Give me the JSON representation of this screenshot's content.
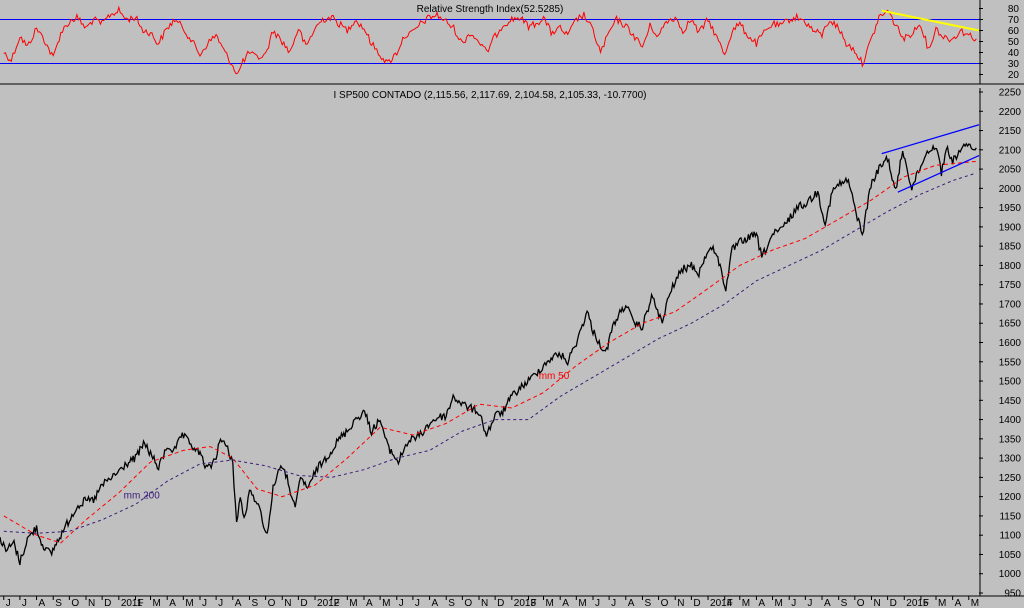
{
  "chart_data": [
    {
      "type": "line",
      "title": "Relative Strength Index(52.5285)",
      "ylim": [
        15,
        85
      ],
      "y_ticks": [
        20,
        30,
        40,
        50,
        60,
        70,
        80
      ],
      "reference_lines": [
        30,
        70
      ],
      "series": [
        {
          "color": "#ff0000",
          "x": [
            "2010-06-01",
            "2010-06-15",
            "2010-07-01",
            "2010-07-15",
            "2010-08-01",
            "2010-08-15",
            "2010-09-01",
            "2010-09-15",
            "2010-10-01",
            "2010-10-15",
            "2010-11-01",
            "2010-11-15",
            "2010-12-01",
            "2010-12-15",
            "2011-01-01",
            "2011-01-15",
            "2011-02-01",
            "2011-02-15",
            "2011-03-01",
            "2011-03-15",
            "2011-04-01",
            "2011-04-15",
            "2011-05-01",
            "2011-05-15",
            "2011-06-01",
            "2011-06-15",
            "2011-07-01",
            "2011-07-15",
            "2011-08-01",
            "2011-08-10",
            "2011-08-20",
            "2011-09-01",
            "2011-09-15",
            "2011-10-01",
            "2011-10-15",
            "2011-11-01",
            "2011-11-15",
            "2011-12-01",
            "2011-12-15",
            "2012-01-01",
            "2012-01-15",
            "2012-02-01",
            "2012-02-15",
            "2012-03-01",
            "2012-03-15",
            "2012-04-01",
            "2012-04-15",
            "2012-05-01",
            "2012-05-15",
            "2012-06-01",
            "2012-06-15",
            "2012-07-01",
            "2012-07-15",
            "2012-08-01",
            "2012-08-15",
            "2012-09-01",
            "2012-09-15",
            "2012-10-01",
            "2012-10-15",
            "2012-11-01",
            "2012-11-15",
            "2012-12-01",
            "2012-12-15",
            "2013-01-01",
            "2013-01-15",
            "2013-02-01",
            "2013-02-15",
            "2013-03-01",
            "2013-03-15",
            "2013-04-01",
            "2013-04-15",
            "2013-05-01",
            "2013-05-15",
            "2013-06-01",
            "2013-06-15",
            "2013-07-01",
            "2013-07-15",
            "2013-08-01",
            "2013-08-15",
            "2013-09-01",
            "2013-09-15",
            "2013-10-01",
            "2013-10-15",
            "2013-11-01",
            "2013-11-15",
            "2013-12-01",
            "2013-12-15",
            "2014-01-01",
            "2014-01-15",
            "2014-02-01",
            "2014-02-15",
            "2014-03-01",
            "2014-03-15",
            "2014-04-01",
            "2014-04-15",
            "2014-05-01",
            "2014-05-15",
            "2014-06-01",
            "2014-06-15",
            "2014-07-01",
            "2014-07-15",
            "2014-08-01",
            "2014-08-15",
            "2014-09-01",
            "2014-09-15",
            "2014-10-01",
            "2014-10-15",
            "2014-11-01",
            "2014-11-15",
            "2014-12-01",
            "2014-12-15",
            "2015-01-01",
            "2015-01-15",
            "2015-02-01",
            "2015-02-15",
            "2015-03-01",
            "2015-03-15",
            "2015-04-01",
            "2015-04-15",
            "2015-05-01",
            "2015-05-15"
          ],
          "y": [
            40,
            33,
            55,
            45,
            62,
            52,
            35,
            58,
            68,
            72,
            62,
            70,
            66,
            74,
            78,
            70,
            72,
            60,
            58,
            48,
            62,
            70,
            62,
            52,
            38,
            48,
            56,
            42,
            28,
            20,
            32,
            40,
            35,
            38,
            60,
            50,
            40,
            62,
            45,
            62,
            70,
            72,
            66,
            60,
            70,
            62,
            48,
            38,
            30,
            40,
            55,
            58,
            66,
            72,
            74,
            68,
            62,
            48,
            58,
            50,
            40,
            55,
            65,
            70,
            72,
            64,
            66,
            72,
            58,
            62,
            55,
            70,
            74,
            60,
            40,
            58,
            70,
            64,
            56,
            45,
            64,
            55,
            68,
            72,
            60,
            70,
            58,
            70,
            56,
            38,
            60,
            66,
            56,
            48,
            58,
            66,
            64,
            70,
            72,
            68,
            60,
            56,
            70,
            62,
            48,
            42,
            30,
            52,
            72,
            78,
            66,
            52,
            58,
            66,
            42,
            62,
            54,
            52,
            60,
            56,
            52.5
          ]
        }
      ],
      "trendline": {
        "color": "#ffff00",
        "x": [
          "2014-11-20",
          "2015-05-20"
        ],
        "y": [
          78,
          60
        ]
      }
    },
    {
      "type": "line",
      "title": "I SP500 CONTADO (2,115.56, 2,117.69, 2,104.58, 2,105.33, -10.7700)",
      "ylim": [
        950,
        2250
      ],
      "y_ticks": [
        950,
        1000,
        1050,
        1100,
        1150,
        1200,
        1250,
        1300,
        1350,
        1400,
        1450,
        1500,
        1550,
        1600,
        1650,
        1700,
        1750,
        1800,
        1850,
        1900,
        1950,
        2000,
        2050,
        2100,
        2150,
        2200,
        2250
      ],
      "x_ticks": [
        "J",
        "J",
        "A",
        "S",
        "O",
        "N",
        "D",
        "2011",
        "F",
        "M",
        "A",
        "M",
        "J",
        "J",
        "A",
        "S",
        "O",
        "N",
        "D",
        "2012",
        "F",
        "M",
        "A",
        "M",
        "J",
        "J",
        "A",
        "S",
        "O",
        "N",
        "D",
        "2013",
        "F",
        "M",
        "A",
        "M",
        "J",
        "J",
        "A",
        "S",
        "O",
        "N",
        "D",
        "2014",
        "F",
        "M",
        "A",
        "M",
        "J",
        "J",
        "A",
        "S",
        "O",
        "N",
        "D",
        "2015",
        "F",
        "M",
        "A",
        "M"
      ],
      "x_tick_dates": [
        "2010-06-01",
        "2010-07-01",
        "2010-08-01",
        "2010-09-01",
        "2010-10-01",
        "2010-11-01",
        "2010-12-01",
        "2011-01-01",
        "2011-02-01",
        "2011-03-01",
        "2011-04-01",
        "2011-05-01",
        "2011-06-01",
        "2011-07-01",
        "2011-08-01",
        "2011-09-01",
        "2011-10-01",
        "2011-11-01",
        "2011-12-01",
        "2012-01-01",
        "2012-02-01",
        "2012-03-01",
        "2012-04-01",
        "2012-05-01",
        "2012-06-01",
        "2012-07-01",
        "2012-08-01",
        "2012-09-01",
        "2012-10-01",
        "2012-11-01",
        "2012-12-01",
        "2013-01-01",
        "2013-02-01",
        "2013-03-01",
        "2013-04-01",
        "2013-05-01",
        "2013-06-01",
        "2013-07-01",
        "2013-08-01",
        "2013-09-01",
        "2013-10-01",
        "2013-11-01",
        "2013-12-01",
        "2014-01-01",
        "2014-02-01",
        "2014-03-01",
        "2014-04-01",
        "2014-05-01",
        "2014-06-01",
        "2014-07-01",
        "2014-08-01",
        "2014-09-01",
        "2014-10-01",
        "2014-11-01",
        "2014-12-01",
        "2015-01-01",
        "2015-02-01",
        "2015-03-01",
        "2015-04-01",
        "2015-05-01"
      ],
      "series": [
        {
          "color": "#000000",
          "x": [
            "2010-05-25",
            "2010-06-05",
            "2010-06-20",
            "2010-07-01",
            "2010-07-15",
            "2010-08-01",
            "2010-08-10",
            "2010-08-27",
            "2010-09-15",
            "2010-10-01",
            "2010-10-15",
            "2010-11-01",
            "2010-11-15",
            "2010-12-01",
            "2010-12-15",
            "2011-01-01",
            "2011-01-15",
            "2011-02-01",
            "2011-02-18",
            "2011-03-01",
            "2011-03-16",
            "2011-04-01",
            "2011-04-15",
            "2011-04-29",
            "2011-05-15",
            "2011-06-01",
            "2011-06-15",
            "2011-07-01",
            "2011-07-07",
            "2011-07-20",
            "2011-08-01",
            "2011-08-08",
            "2011-08-15",
            "2011-08-22",
            "2011-09-01",
            "2011-09-15",
            "2011-09-25",
            "2011-10-04",
            "2011-10-15",
            "2011-10-27",
            "2011-11-10",
            "2011-11-25",
            "2011-12-05",
            "2011-12-20",
            "2012-01-01",
            "2012-01-15",
            "2012-02-01",
            "2012-02-15",
            "2012-03-01",
            "2012-03-15",
            "2012-04-02",
            "2012-04-15",
            "2012-05-01",
            "2012-05-15",
            "2012-06-04",
            "2012-06-20",
            "2012-07-01",
            "2012-07-15",
            "2012-08-01",
            "2012-08-15",
            "2012-09-01",
            "2012-09-14",
            "2012-10-01",
            "2012-10-15",
            "2012-11-01",
            "2012-11-15",
            "2012-12-01",
            "2012-12-15",
            "2013-01-01",
            "2013-01-15",
            "2013-02-01",
            "2013-02-15",
            "2013-03-01",
            "2013-03-15",
            "2013-04-01",
            "2013-04-15",
            "2013-05-01",
            "2013-05-21",
            "2013-06-01",
            "2013-06-24",
            "2013-07-10",
            "2013-08-01",
            "2013-08-15",
            "2013-09-01",
            "2013-09-18",
            "2013-10-08",
            "2013-10-20",
            "2013-11-01",
            "2013-11-15",
            "2013-12-01",
            "2013-12-15",
            "2014-01-01",
            "2014-01-15",
            "2014-02-03",
            "2014-02-15",
            "2014-03-01",
            "2014-03-15",
            "2014-04-01",
            "2014-04-11",
            "2014-05-01",
            "2014-05-15",
            "2014-06-01",
            "2014-06-15",
            "2014-07-01",
            "2014-07-24",
            "2014-08-07",
            "2014-08-20",
            "2014-09-01",
            "2014-09-19",
            "2014-10-01",
            "2014-10-15",
            "2014-10-31",
            "2014-11-15",
            "2014-12-01",
            "2014-12-16",
            "2014-12-29",
            "2015-01-15",
            "2015-02-01",
            "2015-02-15",
            "2015-03-02",
            "2015-03-11",
            "2015-03-20",
            "2015-04-01",
            "2015-04-15",
            "2015-05-01",
            "2015-05-15"
          ],
          "y": [
            1090,
            1060,
            1080,
            1030,
            1090,
            1120,
            1080,
            1050,
            1100,
            1140,
            1175,
            1190,
            1190,
            1230,
            1245,
            1265,
            1285,
            1300,
            1340,
            1310,
            1275,
            1330,
            1320,
            1360,
            1335,
            1310,
            1270,
            1300,
            1350,
            1330,
            1290,
            1130,
            1200,
            1140,
            1210,
            1190,
            1140,
            1100,
            1220,
            1280,
            1250,
            1165,
            1250,
            1220,
            1265,
            1290,
            1320,
            1350,
            1370,
            1400,
            1420,
            1370,
            1400,
            1330,
            1290,
            1340,
            1350,
            1360,
            1390,
            1405,
            1410,
            1460,
            1440,
            1430,
            1420,
            1360,
            1410,
            1420,
            1460,
            1480,
            1500,
            1520,
            1540,
            1560,
            1570,
            1550,
            1600,
            1680,
            1630,
            1570,
            1650,
            1700,
            1650,
            1640,
            1720,
            1650,
            1720,
            1760,
            1790,
            1800,
            1780,
            1840,
            1840,
            1740,
            1840,
            1860,
            1870,
            1880,
            1820,
            1880,
            1890,
            1920,
            1950,
            1960,
            1990,
            1910,
            1990,
            2010,
            2020,
            1950,
            1880,
            2010,
            2050,
            2080,
            1990,
            2100,
            2000,
            2060,
            2100,
            2110,
            2040,
            2105,
            2070,
            2100,
            2110,
            2105
          ]
        },
        {
          "name": "mm 50",
          "color": "#ff0000",
          "dash": "4,3",
          "x": [
            "2010-06-01",
            "2010-08-01",
            "2010-09-15",
            "2010-11-01",
            "2011-01-01",
            "2011-03-01",
            "2011-05-01",
            "2011-06-20",
            "2011-08-01",
            "2011-09-15",
            "2011-11-01",
            "2012-01-01",
            "2012-03-01",
            "2012-05-01",
            "2012-07-01",
            "2012-09-01",
            "2012-11-01",
            "2013-01-01",
            "2013-03-01",
            "2013-05-01",
            "2013-07-01",
            "2013-09-01",
            "2013-11-01",
            "2014-01-01",
            "2014-03-01",
            "2014-05-01",
            "2014-07-01",
            "2014-09-01",
            "2014-11-01",
            "2015-01-01",
            "2015-03-01",
            "2015-05-15"
          ],
          "y": [
            1150,
            1100,
            1080,
            1140,
            1210,
            1290,
            1320,
            1330,
            1300,
            1220,
            1200,
            1230,
            1300,
            1380,
            1360,
            1390,
            1440,
            1430,
            1470,
            1540,
            1600,
            1650,
            1680,
            1740,
            1800,
            1840,
            1870,
            1920,
            1970,
            2030,
            2060,
            2070
          ]
        },
        {
          "name": "mm 200",
          "color": "#3a1c78",
          "dash": "3,3",
          "x": [
            "2010-06-01",
            "2010-08-01",
            "2010-10-01",
            "2010-12-01",
            "2011-02-01",
            "2011-04-01",
            "2011-06-01",
            "2011-08-01",
            "2011-10-01",
            "2011-12-01",
            "2012-02-01",
            "2012-04-01",
            "2012-06-01",
            "2012-08-01",
            "2012-10-01",
            "2012-12-01",
            "2013-02-01",
            "2013-04-01",
            "2013-06-01",
            "2013-08-01",
            "2013-10-01",
            "2013-12-01",
            "2014-02-01",
            "2014-04-01",
            "2014-06-01",
            "2014-08-01",
            "2014-10-01",
            "2014-12-01",
            "2015-02-01",
            "2015-04-01",
            "2015-05-15"
          ],
          "y": [
            1110,
            1105,
            1110,
            1140,
            1180,
            1240,
            1285,
            1295,
            1280,
            1255,
            1250,
            1270,
            1300,
            1320,
            1370,
            1400,
            1400,
            1460,
            1510,
            1560,
            1610,
            1650,
            1700,
            1760,
            1800,
            1840,
            1890,
            1940,
            1985,
            2020,
            2040
          ]
        }
      ],
      "channel_lines": [
        {
          "color": "#0000ff",
          "x": [
            "2014-11-20",
            "2015-05-20"
          ],
          "y": [
            2090,
            2165
          ]
        },
        {
          "color": "#0000ff",
          "x": [
            "2014-12-20",
            "2015-05-20"
          ],
          "y": [
            1990,
            2085
          ]
        }
      ],
      "annotations": [
        {
          "text": "mm 50",
          "color": "#ff0000",
          "x": "2013-02-20",
          "y": 1505
        },
        {
          "text": "mm 200",
          "color": "#3a1c78",
          "x": "2011-01-10",
          "y": 1195
        }
      ]
    }
  ]
}
